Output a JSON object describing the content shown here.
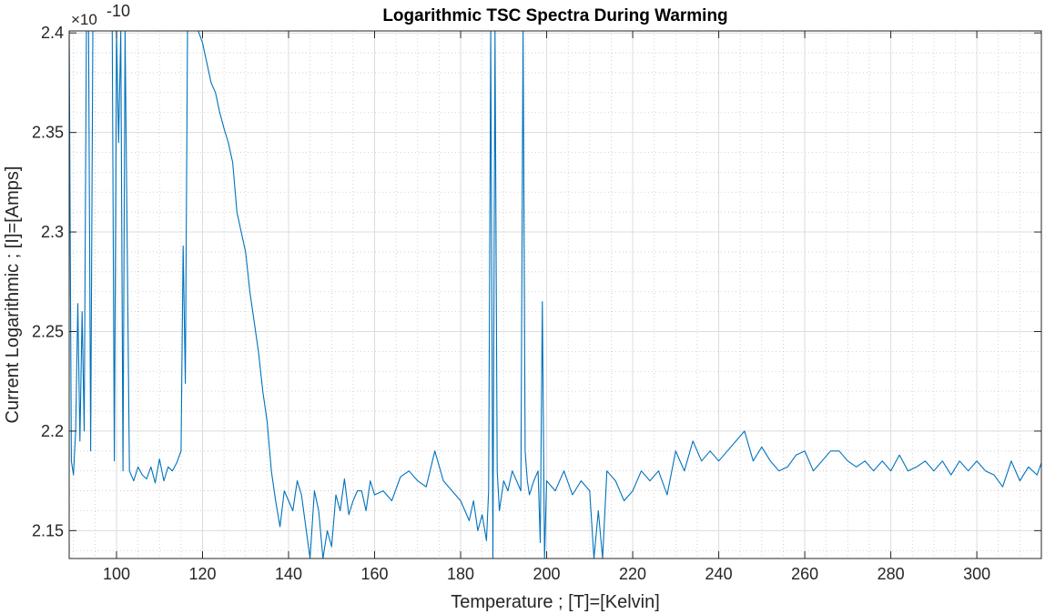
{
  "chart_data": {
    "type": "line",
    "title": "Logarithmic TSC Spectra During Warming",
    "xlabel": "Temperature ; [T]=[Kelvin]",
    "ylabel": "Current Logarithmic ; [I]=[Amps]",
    "y_exponent_base": "×10",
    "y_exponent_power": "-10",
    "xlim": [
      89,
      315
    ],
    "ylim": [
      2.136,
      2.401
    ],
    "grid": true,
    "minor_grid": true,
    "x_ticks": [
      100,
      120,
      140,
      160,
      180,
      200,
      220,
      240,
      260,
      280,
      300
    ],
    "x_tick_labels": [
      "100",
      "120",
      "140",
      "160",
      "180",
      "200",
      "220",
      "240",
      "260",
      "280",
      "300"
    ],
    "y_ticks": [
      2.15,
      2.2,
      2.25,
      2.3,
      2.35,
      2.4
    ],
    "y_tick_labels": [
      "2.15",
      "2.2",
      "2.25",
      "2.3",
      "2.35",
      "2.4"
    ],
    "line_color": "#0072bd",
    "series": [
      {
        "x": [
          89,
          89.5,
          90,
          90.5,
          91,
          91.5,
          92,
          92.5,
          93,
          93.5,
          94,
          94.5,
          95,
          96,
          97,
          98,
          99,
          99.5,
          100,
          100.5,
          101,
          101.5,
          102,
          103,
          104,
          105,
          106,
          107,
          108,
          109,
          110,
          111,
          112,
          113,
          114,
          115,
          115.5,
          116,
          116.5,
          117,
          118,
          119,
          120,
          121,
          122,
          123,
          124,
          125,
          126,
          127,
          128,
          129,
          130,
          131,
          132,
          133,
          134,
          135,
          136,
          137,
          138,
          139,
          140,
          141,
          142,
          143,
          144,
          145,
          146,
          147,
          148,
          149,
          150,
          151,
          152,
          153,
          154,
          155,
          156,
          157,
          158,
          159,
          160,
          162,
          164,
          166,
          168,
          170,
          172,
          174,
          176,
          178,
          180,
          181,
          182,
          183,
          184,
          185,
          186,
          186.5,
          187,
          187.5,
          188,
          188.5,
          189,
          190,
          191,
          192,
          193,
          194,
          194.5,
          195,
          195.5,
          196,
          197,
          198,
          198.5,
          199,
          199.5,
          200,
          202,
          204,
          206,
          208,
          210,
          211,
          212,
          213,
          214,
          216,
          218,
          220,
          222,
          224,
          226,
          228,
          230,
          232,
          234,
          236,
          238,
          240,
          242,
          244,
          246,
          248,
          250,
          252,
          254,
          256,
          258,
          260,
          262,
          264,
          266,
          268,
          270,
          272,
          274,
          276,
          278,
          280,
          282,
          284,
          286,
          288,
          290,
          292,
          294,
          296,
          298,
          300,
          302,
          304,
          306,
          308,
          310,
          312,
          314,
          315
        ],
        "y": [
          2.401,
          2.185,
          2.178,
          2.2,
          2.264,
          2.195,
          2.26,
          2.2,
          2.401,
          2.401,
          2.19,
          2.401,
          2.401,
          2.401,
          2.401,
          2.401,
          2.401,
          2.185,
          2.401,
          2.345,
          2.401,
          2.18,
          2.401,
          2.18,
          2.175,
          2.182,
          2.178,
          2.176,
          2.182,
          2.174,
          2.186,
          2.175,
          2.182,
          2.18,
          2.184,
          2.19,
          2.293,
          2.224,
          2.401,
          2.401,
          2.401,
          2.401,
          2.395,
          2.385,
          2.375,
          2.37,
          2.36,
          2.352,
          2.345,
          2.335,
          2.31,
          2.3,
          2.29,
          2.27,
          2.255,
          2.24,
          2.22,
          2.205,
          2.18,
          2.165,
          2.152,
          2.17,
          2.165,
          2.16,
          2.175,
          2.168,
          2.152,
          2.136,
          2.17,
          2.16,
          2.136,
          2.15,
          2.142,
          2.168,
          2.16,
          2.176,
          2.158,
          2.165,
          2.17,
          2.17,
          2.16,
          2.175,
          2.168,
          2.17,
          2.165,
          2.177,
          2.18,
          2.175,
          2.172,
          2.19,
          2.175,
          2.17,
          2.165,
          2.16,
          2.155,
          2.165,
          2.15,
          2.158,
          2.145,
          2.17,
          2.401,
          2.136,
          2.401,
          2.18,
          2.16,
          2.175,
          2.17,
          2.18,
          2.175,
          2.17,
          2.401,
          2.19,
          2.175,
          2.168,
          2.175,
          2.18,
          2.144,
          2.265,
          2.136,
          2.175,
          2.17,
          2.18,
          2.168,
          2.175,
          2.17,
          2.136,
          2.16,
          2.136,
          2.18,
          2.175,
          2.165,
          2.17,
          2.18,
          2.175,
          2.18,
          2.168,
          2.19,
          2.18,
          2.195,
          2.185,
          2.19,
          2.185,
          2.19,
          2.195,
          2.2,
          2.185,
          2.192,
          2.185,
          2.18,
          2.182,
          2.188,
          2.19,
          2.18,
          2.185,
          2.19,
          2.19,
          2.185,
          2.182,
          2.185,
          2.18,
          2.185,
          2.18,
          2.188,
          2.18,
          2.182,
          2.185,
          2.18,
          2.185,
          2.178,
          2.185,
          2.18,
          2.185,
          2.18,
          2.178,
          2.172,
          2.185,
          2.175,
          2.182,
          2.178,
          2.184
        ]
      }
    ]
  }
}
